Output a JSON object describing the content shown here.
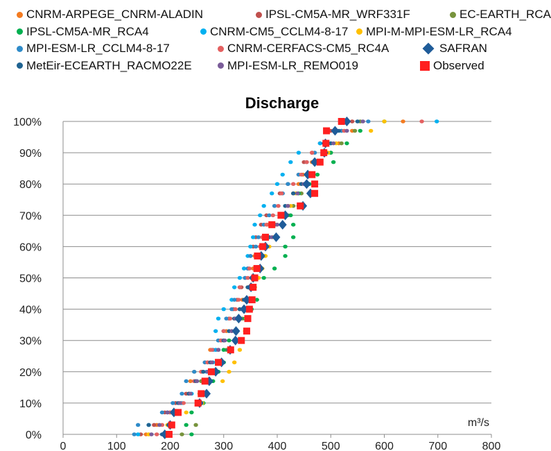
{
  "chart_data": {
    "type": "scatter",
    "title": "Discharge",
    "xlabel": "m³/s",
    "ylabel": "",
    "xlim": [
      0,
      800
    ],
    "ylim": [
      0,
      100
    ],
    "x_ticks": [
      "0",
      "100",
      "200",
      "300",
      "400",
      "500",
      "600",
      "700",
      "800"
    ],
    "y_ticks": [
      "0%",
      "10%",
      "20%",
      "30%",
      "40%",
      "50%",
      "60%",
      "70%",
      "80%",
      "90%",
      "100%"
    ],
    "grid": "horizontal",
    "legend_position": "top",
    "y_levels": [
      0,
      3,
      7,
      10,
      13,
      17,
      20,
      23,
      27,
      30,
      33,
      37,
      40,
      43,
      47,
      50,
      53,
      57,
      60,
      63,
      67,
      70,
      73,
      77,
      80,
      83,
      87,
      90,
      93,
      97,
      100
    ],
    "series": [
      {
        "name": "CNRM-ARPEGE_CNRM-ALADIN",
        "color": "#F47B20",
        "marker": "dot",
        "values": [
          155,
          175,
          200,
          220,
          235,
          238,
          245,
          265,
          275,
          295,
          305,
          320,
          330,
          335,
          345,
          352,
          355,
          358,
          368,
          375,
          382,
          405,
          420,
          430,
          440,
          448,
          465,
          490,
          515,
          540,
          635
        ]
      },
      {
        "name": "IPSL-CM5A-MR_WRF331F",
        "color": "#C0504D",
        "marker": "dot",
        "values": [
          145,
          170,
          190,
          210,
          230,
          245,
          260,
          270,
          285,
          295,
          300,
          310,
          318,
          325,
          333,
          340,
          345,
          350,
          355,
          360,
          370,
          380,
          395,
          405,
          420,
          440,
          450,
          465,
          480,
          500,
          540
        ]
      },
      {
        "name": "EC-EARTH_RCA4",
        "color": "#77933C",
        "marker": "dot",
        "values": [
          222,
          248,
          200,
          258,
          255,
          258,
          282,
          290,
          305,
          300,
          315,
          335,
          350,
          355,
          350,
          360,
          370,
          375,
          380,
          385,
          395,
          420,
          430,
          445,
          455,
          465,
          480,
          500,
          520,
          545,
          555
        ]
      },
      {
        "name": "IPSL-CM5A-MR_RCA4",
        "color": "#00B050",
        "marker": "dot",
        "values": [
          240,
          230,
          240,
          262,
          260,
          280,
          290,
          300,
          300,
          310,
          325,
          340,
          352,
          362,
          358,
          375,
          395,
          415,
          415,
          430,
          430,
          425,
          440,
          440,
          460,
          475,
          505,
          500,
          530,
          555,
          600
        ]
      },
      {
        "name": "CNRM-CM5_CCLM4-8-17",
        "color": "#00B0F0",
        "marker": "dot",
        "values": [
          140,
          160,
          210,
          222,
          240,
          250,
          268,
          280,
          285,
          290,
          285,
          290,
          300,
          315,
          320,
          330,
          338,
          345,
          350,
          355,
          358,
          368,
          375,
          390,
          400,
          410,
          425,
          440,
          480,
          520,
          698
        ]
      },
      {
        "name": "MPI-M-MPI-ESM-LR_RCA4",
        "color": "#FFC000",
        "marker": "dot",
        "values": [
          160,
          195,
          230,
          260,
          255,
          298,
          310,
          320,
          330,
          335,
          340,
          342,
          345,
          340,
          358,
          365,
          372,
          378,
          385,
          392,
          398,
          410,
          425,
          435,
          445,
          455,
          470,
          495,
          510,
          575,
          600
        ]
      },
      {
        "name": "MPI-ESM-LR_CCLM4-8-17",
        "color": "#2E8BC9",
        "marker": "dot",
        "values": [
          133,
          140,
          185,
          205,
          222,
          230,
          245,
          265,
          280,
          290,
          300,
          305,
          315,
          320,
          330,
          340,
          345,
          350,
          360,
          365,
          375,
          385,
          395,
          410,
          420,
          440,
          455,
          470,
          500,
          520,
          570
        ]
      },
      {
        "name": "CNRM-CERFACS-CM5_RC4A",
        "color": "#E46060",
        "marker": "dot",
        "values": [
          175,
          185,
          200,
          225,
          235,
          245,
          258,
          270,
          278,
          295,
          300,
          312,
          322,
          328,
          330,
          345,
          348,
          362,
          368,
          372,
          380,
          392,
          402,
          408,
          430,
          445,
          455,
          465,
          490,
          525,
          670
        ]
      },
      {
        "name": "SAFRAN",
        "color": "#1F5C99",
        "marker": "diamond",
        "values": [
          190,
          200,
          207,
          255,
          268,
          273,
          285,
          296,
          312,
          322,
          323,
          328,
          338,
          343,
          351,
          355,
          368,
          370,
          378,
          398,
          410,
          415,
          448,
          462,
          455,
          457,
          470,
          488,
          490,
          508,
          530
        ]
      },
      {
        "name": "MetEir-ECEARTH_RACMO22E",
        "color": "#1F6391",
        "marker": "dot",
        "values": [
          185,
          160,
          195,
          215,
          235,
          248,
          262,
          275,
          290,
          300,
          310,
          320,
          330,
          338,
          345,
          355,
          360,
          365,
          375,
          385,
          395,
          405,
          415,
          430,
          445,
          460,
          470,
          485,
          500,
          515,
          550
        ]
      },
      {
        "name": "MPI-ESM-LR_REMO019",
        "color": "#7A5C99",
        "marker": "dot",
        "values": [
          165,
          180,
          195,
          218,
          238,
          250,
          270,
          278,
          290,
          302,
          315,
          322,
          335,
          345,
          350,
          358,
          365,
          372,
          380,
          390,
          400,
          412,
          420,
          438,
          450,
          462,
          478,
          490,
          505,
          530,
          560
        ]
      },
      {
        "name": "Observed",
        "color": "#FF2020",
        "marker": "square",
        "values": [
          198,
          203,
          215,
          252,
          258,
          265,
          277,
          290,
          313,
          333,
          343,
          345,
          348,
          353,
          355,
          358,
          362,
          363,
          373,
          378,
          390,
          407,
          443,
          470,
          470,
          465,
          480,
          487,
          491,
          492,
          520
        ]
      }
    ]
  }
}
